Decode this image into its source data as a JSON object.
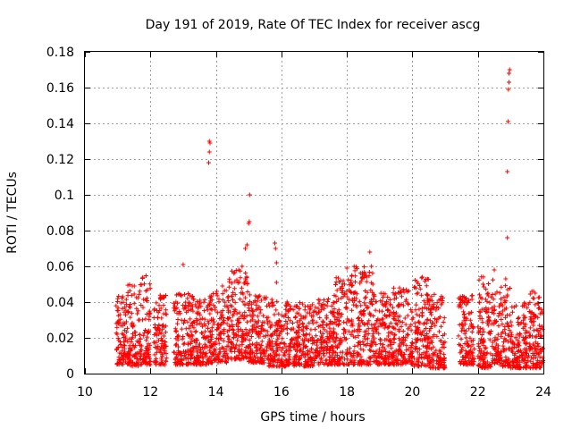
{
  "chart_data": {
    "type": "scatter",
    "title": "Day 191 of 2019, Rate Of TEC Index for receiver ascg",
    "xlabel": "GPS time / hours",
    "ylabel": "ROTI / TECUs",
    "xlim": [
      10,
      24
    ],
    "ylim": [
      0,
      0.18
    ],
    "xticks": [
      "10",
      "12",
      "14",
      "16",
      "18",
      "20",
      "22",
      "24"
    ],
    "yticks": [
      "0",
      "0.02",
      "0.04",
      "0.06",
      "0.08",
      "0.1",
      "0.12",
      "0.14",
      "0.16",
      "0.18"
    ],
    "grid": true,
    "marker": "+",
    "series": [
      {
        "name": "ROTI",
        "color": "#ff0000",
        "data_segments": [
          {
            "x_start": 10.95,
            "x_end": 11.3,
            "y_min": 0.005,
            "y_max": 0.044
          },
          {
            "x_start": 11.3,
            "x_end": 11.7,
            "y_min": 0.004,
            "y_max": 0.05
          },
          {
            "x_start": 11.7,
            "x_end": 12.0,
            "y_min": 0.005,
            "y_max": 0.056
          },
          {
            "x_start": 12.1,
            "x_end": 12.5,
            "y_min": 0.005,
            "y_max": 0.044
          },
          {
            "x_start": 12.7,
            "x_end": 13.3,
            "y_min": 0.005,
            "y_max": 0.045
          },
          {
            "x_start": 13.3,
            "x_end": 13.8,
            "y_min": 0.005,
            "y_max": 0.042
          },
          {
            "x_start": 13.8,
            "x_end": 14.4,
            "y_min": 0.006,
            "y_max": 0.048
          },
          {
            "x_start": 14.4,
            "x_end": 15.0,
            "y_min": 0.008,
            "y_max": 0.058
          },
          {
            "x_start": 15.0,
            "x_end": 15.6,
            "y_min": 0.006,
            "y_max": 0.045
          },
          {
            "x_start": 15.6,
            "x_end": 16.3,
            "y_min": 0.004,
            "y_max": 0.042
          },
          {
            "x_start": 16.3,
            "x_end": 17.0,
            "y_min": 0.004,
            "y_max": 0.04
          },
          {
            "x_start": 17.0,
            "x_end": 17.6,
            "y_min": 0.005,
            "y_max": 0.042
          },
          {
            "x_start": 17.6,
            "x_end": 18.2,
            "y_min": 0.005,
            "y_max": 0.055
          },
          {
            "x_start": 18.2,
            "x_end": 18.8,
            "y_min": 0.005,
            "y_max": 0.06
          },
          {
            "x_start": 18.8,
            "x_end": 19.4,
            "y_min": 0.005,
            "y_max": 0.045
          },
          {
            "x_start": 19.4,
            "x_end": 20.0,
            "y_min": 0.005,
            "y_max": 0.048
          },
          {
            "x_start": 20.0,
            "x_end": 20.5,
            "y_min": 0.004,
            "y_max": 0.054
          },
          {
            "x_start": 20.5,
            "x_end": 21.0,
            "y_min": 0.003,
            "y_max": 0.045
          },
          {
            "x_start": 21.4,
            "x_end": 21.9,
            "y_min": 0.005,
            "y_max": 0.044
          },
          {
            "x_start": 22.0,
            "x_end": 22.5,
            "y_min": 0.003,
            "y_max": 0.055
          },
          {
            "x_start": 22.5,
            "x_end": 23.0,
            "y_min": 0.004,
            "y_max": 0.05
          },
          {
            "x_start": 23.0,
            "x_end": 23.5,
            "y_min": 0.003,
            "y_max": 0.04
          },
          {
            "x_start": 23.5,
            "x_end": 24.0,
            "y_min": 0.003,
            "y_max": 0.046
          }
        ],
        "outliers": [
          {
            "x": 13.0,
            "y": 0.061
          },
          {
            "x": 13.25,
            "y": 0.043
          },
          {
            "x": 13.78,
            "y": 0.118
          },
          {
            "x": 13.8,
            "y": 0.124
          },
          {
            "x": 13.8,
            "y": 0.13
          },
          {
            "x": 13.82,
            "y": 0.129
          },
          {
            "x": 14.2,
            "y": 0.049
          },
          {
            "x": 14.7,
            "y": 0.058
          },
          {
            "x": 14.8,
            "y": 0.06
          },
          {
            "x": 14.9,
            "y": 0.07
          },
          {
            "x": 14.95,
            "y": 0.072
          },
          {
            "x": 15.0,
            "y": 0.084
          },
          {
            "x": 15.02,
            "y": 0.085
          },
          {
            "x": 15.03,
            "y": 0.1
          },
          {
            "x": 15.8,
            "y": 0.073
          },
          {
            "x": 15.82,
            "y": 0.07
          },
          {
            "x": 15.85,
            "y": 0.062
          },
          {
            "x": 15.85,
            "y": 0.051
          },
          {
            "x": 18.0,
            "y": 0.059
          },
          {
            "x": 18.6,
            "y": 0.054
          },
          {
            "x": 18.7,
            "y": 0.068
          },
          {
            "x": 18.75,
            "y": 0.06
          },
          {
            "x": 20.3,
            "y": 0.054
          },
          {
            "x": 22.5,
            "y": 0.058
          },
          {
            "x": 22.85,
            "y": 0.053
          },
          {
            "x": 22.9,
            "y": 0.076
          },
          {
            "x": 22.9,
            "y": 0.113
          },
          {
            "x": 22.92,
            "y": 0.141
          },
          {
            "x": 22.93,
            "y": 0.159
          },
          {
            "x": 22.95,
            "y": 0.163
          },
          {
            "x": 22.95,
            "y": 0.168
          },
          {
            "x": 22.97,
            "y": 0.17
          },
          {
            "x": 23.7,
            "y": 0.046
          },
          {
            "x": 23.75,
            "y": 0.045
          }
        ]
      }
    ]
  }
}
